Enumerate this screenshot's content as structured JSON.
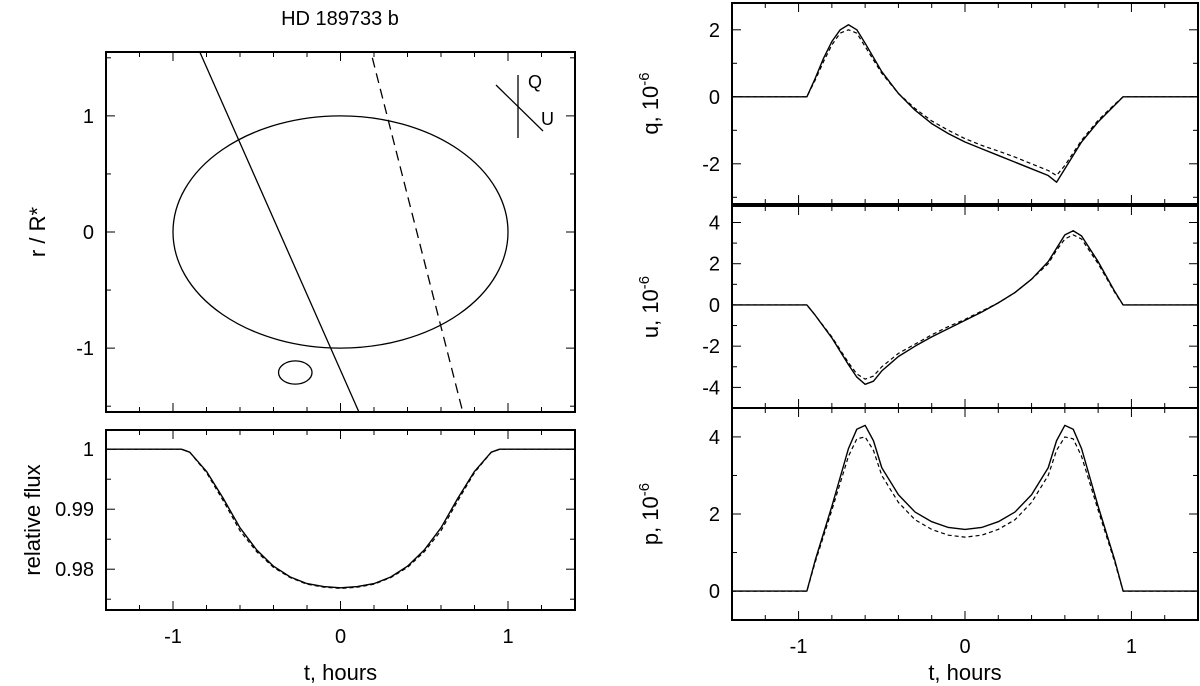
{
  "figure_title": "HD 189733 b",
  "chart_data": [
    {
      "id": "geometry",
      "type": "line",
      "title": "HD 189733 b",
      "xlabel": "",
      "ylabel": "r / R*",
      "xlim": [
        -1.4,
        1.4
      ],
      "ylim": [
        -1.55,
        1.55
      ],
      "yticks": [
        -1,
        0,
        1
      ],
      "yticklabels": [
        "-1",
        "0",
        "1"
      ],
      "grid": false,
      "star": {
        "cx": 0.0,
        "cy": 0.0,
        "r": 1.0
      },
      "planet": {
        "cx": -0.27,
        "cy": -1.21,
        "r": 0.1
      },
      "paths": [
        {
          "style": "solid",
          "points": [
            [
              -0.84,
              1.55
            ],
            [
              0.11,
              -1.55
            ]
          ]
        },
        {
          "style": "dashed",
          "points": [
            [
              0.19,
              1.5
            ],
            [
              0.73,
              -1.55
            ]
          ]
        }
      ],
      "reference_axes": {
        "labels": [
          "Q",
          "U"
        ]
      }
    },
    {
      "id": "flux",
      "type": "line",
      "xlabel": "t, hours",
      "ylabel": "relative flux",
      "xlim": [
        -1.4,
        1.4
      ],
      "ylim": [
        0.9732,
        1.0032
      ],
      "xticks": [
        -1,
        0,
        1
      ],
      "xticklabels": [
        "-1",
        "0",
        "1"
      ],
      "yticks": [
        0.98,
        0.99,
        1.0
      ],
      "yticklabels": [
        "0.98",
        "0.99",
        "1"
      ],
      "grid": false,
      "series": [
        {
          "style": "solid",
          "x": [
            -1.4,
            -0.95,
            -0.9,
            -0.8,
            -0.7,
            -0.6,
            -0.5,
            -0.4,
            -0.3,
            -0.2,
            -0.1,
            0,
            0.1,
            0.2,
            0.3,
            0.4,
            0.5,
            0.6,
            0.7,
            0.8,
            0.9,
            0.95,
            1.4
          ],
          "y": [
            1.0,
            1.0,
            0.9995,
            0.9963,
            0.9918,
            0.9869,
            0.9832,
            0.9805,
            0.9787,
            0.9776,
            0.9771,
            0.9769,
            0.9771,
            0.9776,
            0.9787,
            0.9805,
            0.9832,
            0.9869,
            0.9918,
            0.9963,
            0.9995,
            1.0,
            1.0
          ]
        },
        {
          "style": "dashed",
          "x": [
            -1.4,
            -0.95,
            -0.9,
            -0.8,
            -0.7,
            -0.6,
            -0.5,
            -0.4,
            -0.3,
            -0.2,
            -0.1,
            0,
            0.1,
            0.2,
            0.3,
            0.4,
            0.5,
            0.6,
            0.7,
            0.8,
            0.9,
            0.95,
            1.4
          ],
          "y": [
            1.0,
            1.0,
            0.9995,
            0.9961,
            0.9914,
            0.9864,
            0.9829,
            0.9803,
            0.9786,
            0.9775,
            0.977,
            0.9768,
            0.977,
            0.9775,
            0.9786,
            0.9803,
            0.9829,
            0.9864,
            0.9914,
            0.9961,
            0.9995,
            1.0,
            1.0
          ]
        }
      ]
    },
    {
      "id": "q",
      "type": "line",
      "xlabel": "",
      "ylabel": "q, 10",
      "ylabel_exponent": "-6",
      "xlim": [
        -1.4,
        1.4
      ],
      "ylim": [
        -3.2,
        2.8
      ],
      "yticks": [
        -2,
        0,
        2
      ],
      "yticklabels": [
        "-2",
        "0",
        "2"
      ],
      "grid": false,
      "series": [
        {
          "style": "solid",
          "x": [
            -1.4,
            -0.95,
            -0.9,
            -0.85,
            -0.8,
            -0.75,
            -0.7,
            -0.65,
            -0.6,
            -0.5,
            -0.4,
            -0.3,
            -0.2,
            -0.1,
            0,
            0.1,
            0.2,
            0.3,
            0.4,
            0.5,
            0.55,
            0.6,
            0.7,
            0.8,
            0.9,
            0.95,
            1.4
          ],
          "y": [
            0,
            0,
            0.55,
            1.15,
            1.65,
            2.0,
            2.15,
            2.0,
            1.6,
            0.75,
            0.1,
            -0.4,
            -0.8,
            -1.1,
            -1.35,
            -1.55,
            -1.75,
            -1.95,
            -2.15,
            -2.35,
            -2.55,
            -2.15,
            -1.35,
            -0.75,
            -0.25,
            0,
            0
          ]
        },
        {
          "style": "dashed",
          "x": [
            -1.4,
            -0.95,
            -0.9,
            -0.85,
            -0.8,
            -0.75,
            -0.7,
            -0.65,
            -0.6,
            -0.5,
            -0.4,
            -0.3,
            -0.2,
            -0.1,
            0,
            0.1,
            0.2,
            0.3,
            0.4,
            0.5,
            0.55,
            0.6,
            0.7,
            0.8,
            0.9,
            0.95,
            1.4
          ],
          "y": [
            0,
            0,
            0.5,
            1.05,
            1.55,
            1.9,
            2.0,
            1.9,
            1.5,
            0.7,
            0.1,
            -0.35,
            -0.72,
            -1.0,
            -1.25,
            -1.45,
            -1.62,
            -1.8,
            -2.0,
            -2.2,
            -2.35,
            -2.05,
            -1.3,
            -0.7,
            -0.22,
            0,
            0
          ]
        }
      ]
    },
    {
      "id": "u",
      "type": "line",
      "xlabel": "",
      "ylabel": "u, 10",
      "ylabel_exponent": "-6",
      "xlim": [
        -1.4,
        1.4
      ],
      "ylim": [
        -5.0,
        4.8
      ],
      "yticks": [
        -4,
        -2,
        0,
        2,
        4
      ],
      "yticklabels": [
        "-4",
        "-2",
        "0",
        "2",
        "4"
      ],
      "grid": false,
      "series": [
        {
          "style": "solid",
          "x": [
            -1.4,
            -0.95,
            -0.9,
            -0.8,
            -0.7,
            -0.65,
            -0.6,
            -0.55,
            -0.5,
            -0.4,
            -0.3,
            -0.2,
            -0.1,
            0,
            0.1,
            0.2,
            0.3,
            0.4,
            0.5,
            0.55,
            0.6,
            0.65,
            0.7,
            0.8,
            0.9,
            0.95,
            1.4
          ],
          "y": [
            0,
            0,
            -0.5,
            -1.6,
            -2.9,
            -3.5,
            -3.85,
            -3.7,
            -3.2,
            -2.5,
            -2.0,
            -1.55,
            -1.15,
            -0.75,
            -0.35,
            0.1,
            0.6,
            1.25,
            2.1,
            2.75,
            3.4,
            3.6,
            3.35,
            2.1,
            0.65,
            0,
            0
          ]
        },
        {
          "style": "dashed",
          "x": [
            -1.4,
            -0.95,
            -0.9,
            -0.8,
            -0.7,
            -0.65,
            -0.6,
            -0.55,
            -0.5,
            -0.4,
            -0.3,
            -0.2,
            -0.1,
            0,
            0.1,
            0.2,
            0.3,
            0.4,
            0.5,
            0.55,
            0.6,
            0.65,
            0.7,
            0.8,
            0.9,
            0.95,
            1.4
          ],
          "y": [
            0,
            0,
            -0.5,
            -1.55,
            -2.8,
            -3.35,
            -3.6,
            -3.45,
            -3.0,
            -2.35,
            -1.9,
            -1.45,
            -1.05,
            -0.7,
            -0.3,
            0.1,
            0.6,
            1.25,
            2.0,
            2.65,
            3.2,
            3.4,
            3.2,
            2.0,
            0.6,
            0,
            0
          ]
        }
      ]
    },
    {
      "id": "p",
      "type": "line",
      "xlabel": "t, hours",
      "ylabel": "p, 10",
      "ylabel_exponent": "-6",
      "xlim": [
        -1.4,
        1.4
      ],
      "ylim": [
        -0.75,
        4.75
      ],
      "xticks": [
        -1,
        0,
        1
      ],
      "xticklabels": [
        "-1",
        "0",
        "1"
      ],
      "yticks": [
        0,
        2,
        4
      ],
      "yticklabels": [
        "0",
        "2",
        "4"
      ],
      "grid": false,
      "series": [
        {
          "style": "solid",
          "x": [
            -1.4,
            -0.95,
            -0.9,
            -0.8,
            -0.7,
            -0.65,
            -0.6,
            -0.55,
            -0.5,
            -0.4,
            -0.3,
            -0.2,
            -0.1,
            0,
            0.1,
            0.2,
            0.3,
            0.4,
            0.5,
            0.55,
            0.6,
            0.65,
            0.7,
            0.8,
            0.9,
            0.95,
            1.4
          ],
          "y": [
            0,
            0,
            0.8,
            2.2,
            3.7,
            4.2,
            4.3,
            3.9,
            3.2,
            2.5,
            2.05,
            1.8,
            1.65,
            1.6,
            1.65,
            1.8,
            2.05,
            2.5,
            3.2,
            3.9,
            4.3,
            4.2,
            3.7,
            2.2,
            0.8,
            0,
            0
          ]
        },
        {
          "style": "dashed",
          "x": [
            -1.4,
            -0.95,
            -0.9,
            -0.8,
            -0.7,
            -0.65,
            -0.6,
            -0.55,
            -0.5,
            -0.4,
            -0.3,
            -0.2,
            -0.1,
            0,
            0.1,
            0.2,
            0.3,
            0.4,
            0.5,
            0.55,
            0.6,
            0.65,
            0.7,
            0.8,
            0.9,
            0.95,
            1.4
          ],
          "y": [
            0,
            0,
            0.75,
            2.1,
            3.5,
            3.95,
            4.0,
            3.65,
            3.0,
            2.3,
            1.85,
            1.6,
            1.45,
            1.4,
            1.45,
            1.6,
            1.85,
            2.3,
            3.0,
            3.65,
            4.0,
            3.95,
            3.5,
            2.1,
            0.75,
            0,
            0
          ]
        }
      ]
    }
  ]
}
